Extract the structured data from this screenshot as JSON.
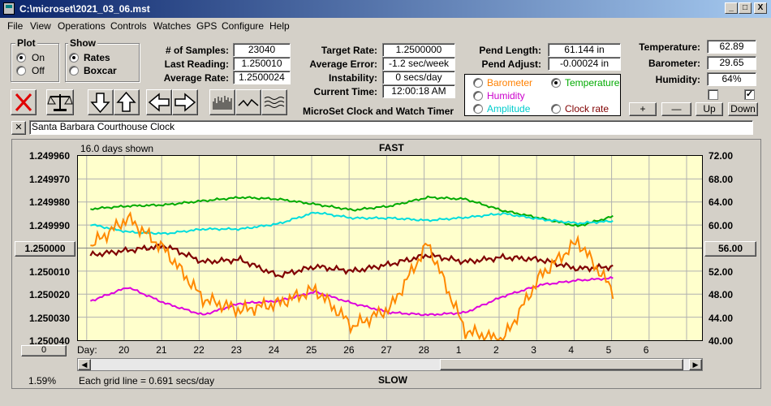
{
  "window": {
    "title": "C:\\microset\\2021_03_06.mst",
    "min": "_",
    "max": "□",
    "close": "X"
  },
  "menu": [
    "File",
    "View",
    "Operations",
    "Controls",
    "Watches",
    "GPS",
    "Configure",
    "Help"
  ],
  "plot_group": {
    "title": "Plot",
    "on": "On",
    "off": "Off",
    "selected": "On"
  },
  "show_group": {
    "title": "Show",
    "rates": "Rates",
    "boxcar": "Boxcar",
    "selected": "Rates"
  },
  "stats": {
    "samples_label": "# of Samples:",
    "samples": "23040",
    "last_label": "Last Reading:",
    "last": "1.250010",
    "avg_label": "Average Rate:",
    "avg": "1.2500024",
    "target_label": "Target Rate:",
    "target": "1.2500000",
    "avgerr_label": "Average Error:",
    "avgerr": "-1.2 sec/week",
    "instab_label": "Instability:",
    "instab": "0 secs/day",
    "time_label": "Current Time:",
    "time": "12:00:18 AM",
    "pendlen_label": "Pend Length:",
    "pendlen": "61.144 in",
    "pendadj_label": "Pend Adjust:",
    "pendadj": "-0.00024 in",
    "temp_label": "Temperature:",
    "temp": "62.89",
    "baro_label": "Barometer:",
    "baro": "29.65",
    "hum_label": "Humidity:",
    "hum": "64%"
  },
  "app_title": "MicroSet Clock and Watch Timer",
  "series_select": {
    "barometer": "Barometer",
    "temperature": "Temperature",
    "humidity": "Humidity",
    "amplitude": "Amplitude",
    "clockrate": "Clock rate",
    "selected": "Temperature",
    "colors": {
      "barometer": "#ff8000",
      "temperature": "#00aa00",
      "humidity": "#cc00cc",
      "amplitude": "#00cccc",
      "clockrate": "#800000"
    }
  },
  "adjust_buttons": [
    "+",
    "—",
    "Up",
    "Down"
  ],
  "clock_name": "Santa Barbara Courthouse Clock",
  "close_x": "✕",
  "graph": {
    "days_shown": "16.0 days shown",
    "top_label": "FAST",
    "bottom_label": "SLOW",
    "grid_note": "Each grid line = 0.691 secs/day",
    "percent": "1.59%",
    "left_button": "1.250000",
    "right_button": "56.00",
    "zero_button": "0",
    "day_label": "Day:",
    "left_ticks": [
      "1.249960",
      "1.249970",
      "1.249980",
      "1.249990",
      "1.250000",
      "1.250010",
      "1.250020",
      "1.250030",
      "1.250040"
    ],
    "right_ticks": [
      "72.00",
      "68.00",
      "64.00",
      "60.00",
      "56.00",
      "52.00",
      "48.00",
      "44.00",
      "40.00"
    ],
    "day_ticks": [
      "20",
      "21",
      "22",
      "23",
      "24",
      "25",
      "26",
      "27",
      "28",
      "1",
      "2",
      "3",
      "4",
      "5",
      "6"
    ]
  },
  "chart_data": {
    "type": "line",
    "title": "",
    "xlabel": "Day",
    "x": [
      "20",
      "21",
      "22",
      "23",
      "24",
      "25",
      "26",
      "27",
      "28",
      "1",
      "2",
      "3",
      "4",
      "5",
      "6"
    ],
    "y_left_range": [
      1.24996,
      1.25004
    ],
    "y_right_range": [
      40,
      72
    ],
    "series": [
      {
        "name": "Temperature",
        "color": "#00aa00",
        "values": [
          62.8,
          63.3,
          63.5,
          64.2,
          64.8,
          64.5,
          63.6,
          62.6,
          63.3,
          64.8,
          64.5,
          62.5,
          61.2,
          59.8,
          61.6
        ]
      },
      {
        "name": "Amplitude",
        "color": "#00dddd",
        "values": [
          60.1,
          58.8,
          58.5,
          59.3,
          59.3,
          60.2,
          62.2,
          61.2,
          61.2,
          60.8,
          61.3,
          62.0,
          61.0,
          60.3,
          60.7
        ]
      },
      {
        "name": "Clock rate",
        "color": "#800000",
        "values": [
          1.250003,
          1.250001,
          1.249999,
          1.250006,
          1.250005,
          1.250012,
          1.250008,
          1.25001,
          1.250007,
          1.250003,
          1.250006,
          1.250004,
          1.250005,
          1.250009,
          1.250008
        ]
      },
      {
        "name": "Humidity",
        "color": "#dd00dd",
        "values": [
          1.250023,
          1.250017,
          1.250024,
          1.250029,
          1.250024,
          1.250023,
          1.250019,
          1.250024,
          1.250028,
          1.250029,
          1.250028,
          1.250021,
          1.250016,
          1.250014,
          1.250013
        ]
      },
      {
        "name": "Barometer",
        "color": "#ff8800",
        "values": [
          1.249999,
          1.249987,
          1.250001,
          1.250022,
          1.250027,
          1.250024,
          1.250018,
          1.250034,
          1.250026,
          1.249998,
          1.250036,
          1.25004,
          1.250012,
          1.249997,
          1.25002
        ]
      }
    ]
  }
}
